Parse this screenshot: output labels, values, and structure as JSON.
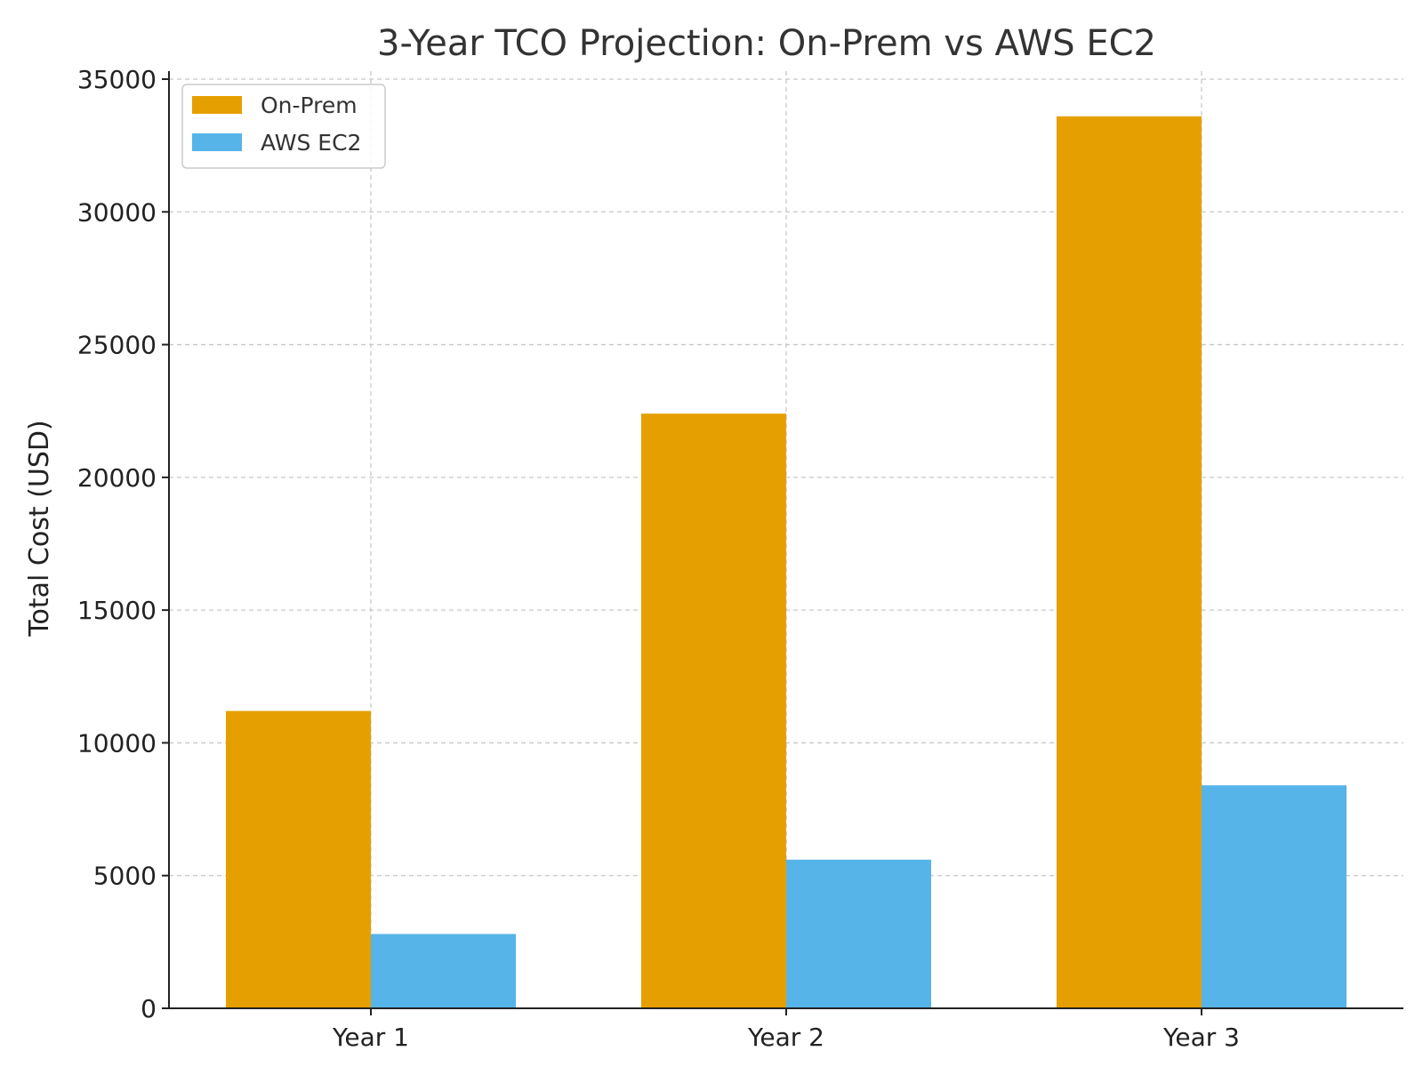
{
  "chart_data": {
    "type": "bar",
    "title": "3-Year TCO Projection: On-Prem vs AWS EC2",
    "xlabel": "",
    "ylabel": "Total Cost (USD)",
    "categories": [
      "Year 1",
      "Year 2",
      "Year 3"
    ],
    "series": [
      {
        "name": "On-Prem",
        "color": "#E69F00",
        "values": [
          11200,
          22400,
          33600
        ]
      },
      {
        "name": "AWS EC2",
        "color": "#56B4E9",
        "values": [
          2800,
          5600,
          8400
        ]
      }
    ],
    "ylim": [
      0,
      35000
    ],
    "yticks": [
      "0",
      "5000",
      "10000",
      "15000",
      "20000",
      "25000",
      "30000",
      "35000"
    ],
    "grid": true,
    "legend": "top-left"
  }
}
